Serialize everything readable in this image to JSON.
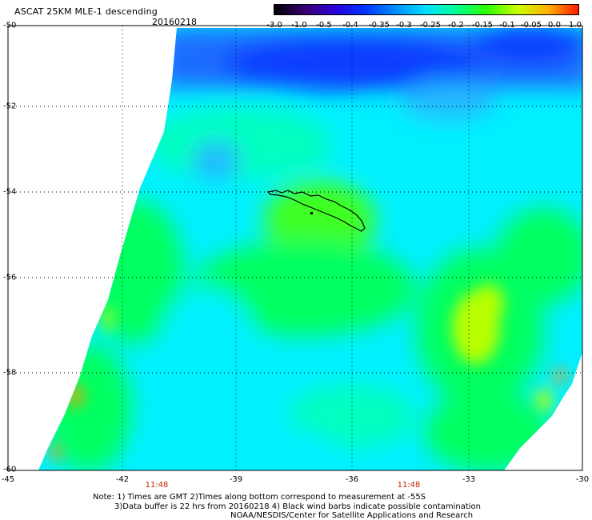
{
  "header": {
    "title": "ASCAT 25KM MLE-1 descending",
    "date": "20160218"
  },
  "colorbar": {
    "labels": [
      "-3.0",
      "-1.0",
      "-0.5",
      "-0.4",
      "-0.35",
      "-0.3",
      "-0.25",
      "-0.2",
      "-0.15",
      "-0.1",
      "-0.05",
      "0.0",
      "1.0"
    ],
    "colors": [
      "#000000",
      "#3a0070",
      "#2a00d8",
      "#0035ff",
      "#0090ff",
      "#00e0ff",
      "#00ff90",
      "#30ff00",
      "#c8ff00",
      "#ffb000",
      "#ff1a00"
    ]
  },
  "axes": {
    "lat_labels": [
      "-50",
      "-52",
      "-54",
      "-56",
      "-58",
      "-60"
    ],
    "lon_labels": [
      "-45",
      "-42",
      "-39",
      "-36",
      "-33",
      "-30"
    ],
    "times": [
      "11:48",
      "11:48"
    ]
  },
  "swath_colors": {
    "blue_dark": "#0a3cff",
    "blue": "#1a6cff",
    "light_blue": "#20b8ff",
    "cyan": "#00f0ff",
    "aqua": "#00ffc0",
    "green": "#00ff60",
    "lime": "#40ff20",
    "yellow_green": "#b8ff00",
    "orange": "#ff9900"
  },
  "notes": {
    "line1": "Note: 1) Times are GMT 2)Times along bottom correspond to measurement at -55S",
    "line2": "3)Data buffer is 22 hrs from 20160218 4) Black wind barbs indicate possible contamination",
    "line3": "NOAA/NESDIS/Center for Satellite Applications and Research"
  }
}
